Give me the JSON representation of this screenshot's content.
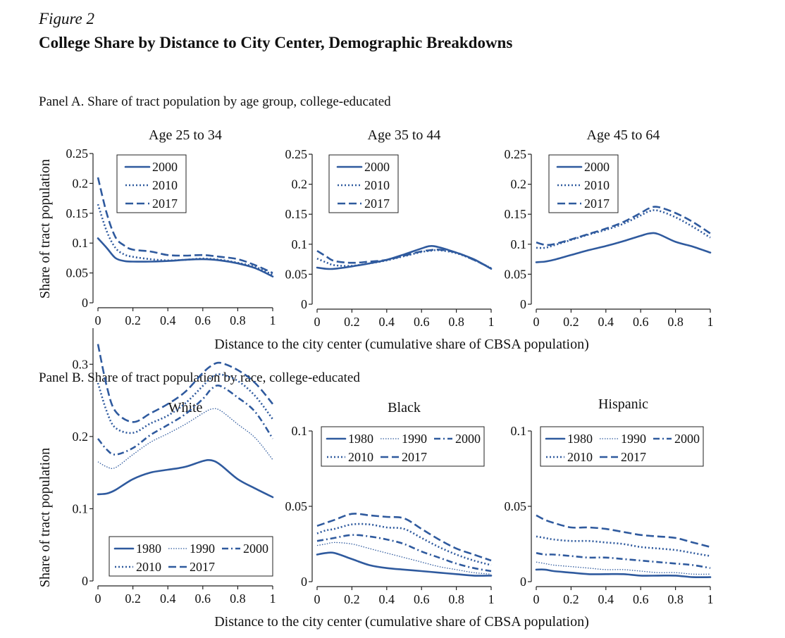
{
  "figure": {
    "number": "Figure 2",
    "title": "College Share by Distance to City Center, Demographic Breakdowns"
  },
  "panel_a_label": "Panel A. Share of tract population by age group, college-educated",
  "panel_b_label": "Panel B. Share of tract population by race, college-educated",
  "colors": {
    "line": "#2f5a9e",
    "axis": "#222222"
  },
  "chart_data": [
    {
      "type": "line",
      "panel": "A",
      "title": "Age 25 to 34",
      "xlabel": "Distance to the city center (cumulative share of CBSA population)",
      "ylabel": "Share of tract population",
      "xlim": [
        0,
        1
      ],
      "ylim": [
        0,
        0.25
      ],
      "xticks": [
        0,
        0.2,
        0.4,
        0.6,
        0.8,
        1
      ],
      "xtick_labels": [
        "0",
        "0.2",
        "0.4",
        "0.6",
        "0.8",
        "1"
      ],
      "yticks": [
        0,
        0.05,
        0.1,
        0.15,
        0.2,
        0.25
      ],
      "ytick_labels": [
        "0",
        "0.05",
        "0.1",
        "0.15",
        "0.2",
        "0.25"
      ],
      "legend_position": "top-left",
      "legend_columns": 1,
      "x": [
        0,
        0.05,
        0.1,
        0.15,
        0.2,
        0.3,
        0.4,
        0.5,
        0.6,
        0.7,
        0.8,
        0.9,
        1
      ],
      "series": [
        {
          "name": "2000",
          "style": "solid",
          "values": [
            0.108,
            0.092,
            0.075,
            0.07,
            0.069,
            0.069,
            0.07,
            0.072,
            0.073,
            0.071,
            0.066,
            0.058,
            0.044
          ]
        },
        {
          "name": "2010",
          "style": "dotted",
          "values": [
            0.165,
            0.12,
            0.092,
            0.081,
            0.077,
            0.073,
            0.071,
            0.072,
            0.074,
            0.072,
            0.067,
            0.06,
            0.047
          ]
        },
        {
          "name": "2017",
          "style": "dashed",
          "values": [
            0.21,
            0.15,
            0.11,
            0.096,
            0.089,
            0.086,
            0.08,
            0.079,
            0.08,
            0.077,
            0.073,
            0.063,
            0.05
          ]
        }
      ]
    },
    {
      "type": "line",
      "panel": "A",
      "title": "Age 35 to 44",
      "xlim": [
        0,
        1
      ],
      "ylim": [
        0,
        0.25
      ],
      "xticks": [
        0,
        0.2,
        0.4,
        0.6,
        0.8,
        1
      ],
      "xtick_labels": [
        "0",
        "0.2",
        "0.4",
        "0.6",
        "0.8",
        "1"
      ],
      "yticks": [
        0,
        0.05,
        0.1,
        0.15,
        0.2,
        0.25
      ],
      "ytick_labels": [
        "0",
        "0.05",
        "0.1",
        "0.15",
        "0.2",
        "0.25"
      ],
      "legend_position": "top-left",
      "legend_columns": 1,
      "x": [
        0,
        0.05,
        0.1,
        0.2,
        0.3,
        0.4,
        0.5,
        0.6,
        0.65,
        0.7,
        0.8,
        0.9,
        1
      ],
      "series": [
        {
          "name": "2000",
          "style": "solid",
          "values": [
            0.061,
            0.059,
            0.059,
            0.063,
            0.068,
            0.074,
            0.083,
            0.093,
            0.097,
            0.095,
            0.086,
            0.075,
            0.059
          ]
        },
        {
          "name": "2010",
          "style": "dotted",
          "values": [
            0.076,
            0.07,
            0.065,
            0.064,
            0.068,
            0.073,
            0.08,
            0.087,
            0.089,
            0.09,
            0.085,
            0.074,
            0.06
          ]
        },
        {
          "name": "2017",
          "style": "dashed",
          "values": [
            0.089,
            0.08,
            0.072,
            0.069,
            0.071,
            0.074,
            0.081,
            0.088,
            0.09,
            0.091,
            0.086,
            0.074,
            0.06
          ]
        }
      ]
    },
    {
      "type": "line",
      "panel": "A",
      "title": "Age 45 to 64",
      "xlim": [
        0,
        1
      ],
      "ylim": [
        0,
        0.25
      ],
      "xticks": [
        0,
        0.2,
        0.4,
        0.6,
        0.8,
        1
      ],
      "xtick_labels": [
        "0",
        "0.2",
        "0.4",
        "0.6",
        "0.8",
        "1"
      ],
      "yticks": [
        0,
        0.05,
        0.1,
        0.15,
        0.2,
        0.25
      ],
      "ytick_labels": [
        "0",
        "0.05",
        "0.1",
        "0.15",
        "0.2",
        "0.25"
      ],
      "legend_position": "top-left",
      "legend_columns": 1,
      "x": [
        0,
        0.05,
        0.1,
        0.2,
        0.3,
        0.4,
        0.5,
        0.6,
        0.65,
        0.7,
        0.8,
        0.9,
        1
      ],
      "series": [
        {
          "name": "2000",
          "style": "solid",
          "values": [
            0.07,
            0.071,
            0.074,
            0.082,
            0.09,
            0.097,
            0.105,
            0.114,
            0.118,
            0.117,
            0.104,
            0.096,
            0.086
          ]
        },
        {
          "name": "2010",
          "style": "dotted",
          "values": [
            0.094,
            0.094,
            0.098,
            0.107,
            0.116,
            0.124,
            0.134,
            0.148,
            0.155,
            0.156,
            0.145,
            0.129,
            0.111
          ]
        },
        {
          "name": "2017",
          "style": "dashed",
          "values": [
            0.103,
            0.099,
            0.1,
            0.108,
            0.117,
            0.126,
            0.137,
            0.152,
            0.16,
            0.162,
            0.152,
            0.137,
            0.118
          ]
        }
      ]
    },
    {
      "type": "line",
      "panel": "B",
      "title": "White",
      "xlabel": "Distance to the city center (cumulative share of CBSA population)",
      "ylabel": "Share of tract population",
      "xlim": [
        0,
        1
      ],
      "ylim": [
        0,
        0.35
      ],
      "xticks": [
        0,
        0.2,
        0.4,
        0.6,
        0.8,
        1
      ],
      "xtick_labels": [
        "0",
        "0.2",
        "0.4",
        "0.6",
        "0.8",
        "1"
      ],
      "yticks": [
        0,
        0.1,
        0.2,
        0.3
      ],
      "ytick_labels": [
        "0",
        "0.1",
        "0.2",
        "0.3"
      ],
      "legend_position": "bottom-left",
      "legend_columns": 3,
      "x": [
        0,
        0.05,
        0.1,
        0.2,
        0.3,
        0.4,
        0.5,
        0.6,
        0.65,
        0.7,
        0.8,
        0.9,
        1
      ],
      "series": [
        {
          "name": "1980",
          "style": "solid",
          "values": [
            0.12,
            0.121,
            0.126,
            0.141,
            0.15,
            0.154,
            0.158,
            0.166,
            0.167,
            0.161,
            0.141,
            0.128,
            0.116
          ]
        },
        {
          "name": "1990",
          "style": "finedot",
          "values": [
            0.165,
            0.158,
            0.157,
            0.175,
            0.192,
            0.204,
            0.217,
            0.232,
            0.238,
            0.236,
            0.217,
            0.198,
            0.168
          ]
        },
        {
          "name": "2000",
          "style": "dashdot",
          "values": [
            0.197,
            0.182,
            0.175,
            0.184,
            0.202,
            0.216,
            0.231,
            0.252,
            0.266,
            0.27,
            0.254,
            0.234,
            0.197
          ]
        },
        {
          "name": "2010",
          "style": "dotted",
          "values": [
            0.274,
            0.235,
            0.212,
            0.205,
            0.218,
            0.229,
            0.246,
            0.27,
            0.282,
            0.286,
            0.277,
            0.256,
            0.224
          ]
        },
        {
          "name": "2017",
          "style": "dashed",
          "values": [
            0.328,
            0.27,
            0.235,
            0.22,
            0.232,
            0.245,
            0.262,
            0.288,
            0.298,
            0.302,
            0.292,
            0.274,
            0.245
          ]
        }
      ]
    },
    {
      "type": "line",
      "panel": "B",
      "title": "Black",
      "xlim": [
        0,
        1
      ],
      "ylim": [
        0,
        0.1
      ],
      "xticks": [
        0,
        0.2,
        0.4,
        0.6,
        0.8,
        1
      ],
      "xtick_labels": [
        "0",
        "0.2",
        "0.4",
        "0.6",
        "0.8",
        "1"
      ],
      "yticks": [
        0,
        0.05,
        0.1
      ],
      "ytick_labels": [
        "0",
        "0.05",
        "0.1"
      ],
      "legend_position": "top",
      "legend_columns": 3,
      "x": [
        0,
        0.05,
        0.1,
        0.2,
        0.3,
        0.4,
        0.5,
        0.6,
        0.7,
        0.8,
        0.9,
        1
      ],
      "series": [
        {
          "name": "1980",
          "style": "solid",
          "values": [
            0.018,
            0.019,
            0.019,
            0.015,
            0.011,
            0.009,
            0.008,
            0.007,
            0.006,
            0.005,
            0.004,
            0.004
          ]
        },
        {
          "name": "1990",
          "style": "finedot",
          "values": [
            0.024,
            0.025,
            0.026,
            0.025,
            0.022,
            0.019,
            0.016,
            0.013,
            0.01,
            0.008,
            0.006,
            0.005
          ]
        },
        {
          "name": "2000",
          "style": "dashdot",
          "values": [
            0.027,
            0.028,
            0.029,
            0.031,
            0.03,
            0.028,
            0.025,
            0.02,
            0.016,
            0.012,
            0.009,
            0.007
          ]
        },
        {
          "name": "2010",
          "style": "dotted",
          "values": [
            0.032,
            0.034,
            0.035,
            0.038,
            0.038,
            0.036,
            0.035,
            0.029,
            0.023,
            0.018,
            0.014,
            0.011
          ]
        },
        {
          "name": "2017",
          "style": "dashed",
          "values": [
            0.037,
            0.039,
            0.041,
            0.045,
            0.044,
            0.043,
            0.042,
            0.035,
            0.028,
            0.022,
            0.018,
            0.014
          ]
        }
      ]
    },
    {
      "type": "line",
      "panel": "B",
      "title": "Hispanic",
      "xlim": [
        0,
        1
      ],
      "ylim": [
        0,
        0.1
      ],
      "xticks": [
        0,
        0.2,
        0.4,
        0.6,
        0.8,
        1
      ],
      "xtick_labels": [
        "0",
        "0.2",
        "0.4",
        "0.6",
        "0.8",
        "1"
      ],
      "yticks": [
        0,
        0.05,
        0.1
      ],
      "ytick_labels": [
        "0",
        "0.05",
        "0.1"
      ],
      "legend_position": "top",
      "legend_columns": 3,
      "x": [
        0,
        0.05,
        0.1,
        0.2,
        0.3,
        0.4,
        0.5,
        0.6,
        0.7,
        0.8,
        0.9,
        1
      ],
      "series": [
        {
          "name": "1980",
          "style": "solid",
          "values": [
            0.008,
            0.008,
            0.007,
            0.006,
            0.005,
            0.005,
            0.005,
            0.004,
            0.004,
            0.004,
            0.003,
            0.003
          ]
        },
        {
          "name": "1990",
          "style": "finedot",
          "values": [
            0.013,
            0.012,
            0.011,
            0.01,
            0.009,
            0.008,
            0.008,
            0.007,
            0.006,
            0.006,
            0.005,
            0.005
          ]
        },
        {
          "name": "2000",
          "style": "dashdot",
          "values": [
            0.019,
            0.018,
            0.018,
            0.017,
            0.016,
            0.016,
            0.015,
            0.014,
            0.013,
            0.012,
            0.011,
            0.009
          ]
        },
        {
          "name": "2010",
          "style": "dotted",
          "values": [
            0.03,
            0.029,
            0.028,
            0.027,
            0.027,
            0.026,
            0.025,
            0.023,
            0.022,
            0.021,
            0.019,
            0.017
          ]
        },
        {
          "name": "2017",
          "style": "dashed",
          "values": [
            0.044,
            0.041,
            0.039,
            0.036,
            0.036,
            0.035,
            0.033,
            0.031,
            0.03,
            0.029,
            0.026,
            0.023
          ]
        }
      ]
    }
  ]
}
